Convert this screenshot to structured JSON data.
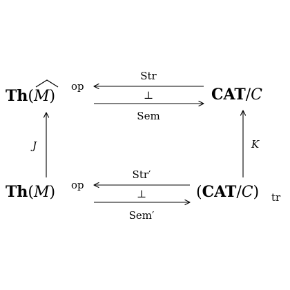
{
  "nodes": {
    "top_left": {
      "th": "Th",
      "open": "(",
      "hat": "^",
      "m": "M",
      "close": ")",
      "sup": "op"
    },
    "top_right": {
      "cat": "CAT",
      "slash": "/",
      "c": "C"
    },
    "bottom_left": {
      "th": "Th",
      "open": "(",
      "m": "M",
      "close": ")",
      "sup": "op"
    },
    "bottom_right": {
      "open": "(",
      "cat": "CAT",
      "slash": "/",
      "c": "C",
      "close": ")",
      "sub": "tr"
    }
  },
  "arrows": {
    "top_left_arrow_label": "Str",
    "top_right_arrow_label": "Sem",
    "top_adjoint": "⊥",
    "bottom_left_arrow_label": "Str′",
    "bottom_right_arrow_label": "Sem′",
    "bottom_adjoint": "⊥",
    "left_vertical_label": "J",
    "right_vertical_label": "K"
  }
}
